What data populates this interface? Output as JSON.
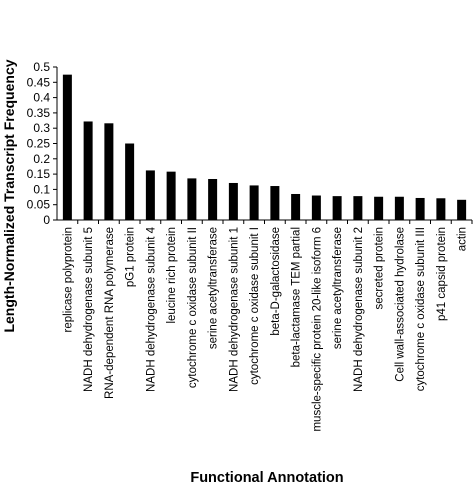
{
  "chart_data": {
    "type": "bar",
    "title": "",
    "xlabel": "Functional Annotation",
    "ylabel": "Length-Normalized Transcript Frequency",
    "ylim": [
      0,
      0.5
    ],
    "yticks": [
      "0",
      "0.05",
      "0.1",
      "0.15",
      "0.2",
      "0.25",
      "0.3",
      "0.35",
      "0.4",
      "0.45",
      "0.5"
    ],
    "grid": false,
    "legend": "none",
    "bar_color": "#000000",
    "categories": [
      "replicase polyprotein",
      "NADH dehydrogenase subunit 5",
      "RNA-dependent RNA polymerase",
      "pG1 protein",
      "NADH dehydrogenase subunit 4",
      "leucine rich protein",
      "cytochrome c oxidase subunit II",
      "serine acetyltransferase",
      "NADH dehydrogenase subunit 1",
      "cytochrome c oxidase subunit I",
      "beta-D-galactosidase",
      "beta-lactamase TEM  partial",
      "muscle-specific protein 20-like isoform 6",
      "serine acetyltransferase",
      "NADH dehydrogenase subunit 2",
      "secreted protein",
      "Cell wall-associated hydrolase",
      "cytochrome c oxidase subunit III",
      "p41 capsid protein",
      "actin"
    ],
    "values": [
      0.475,
      0.322,
      0.316,
      0.25,
      0.162,
      0.158,
      0.136,
      0.134,
      0.121,
      0.113,
      0.111,
      0.085,
      0.08,
      0.078,
      0.078,
      0.076,
      0.076,
      0.072,
      0.071,
      0.066
    ]
  }
}
